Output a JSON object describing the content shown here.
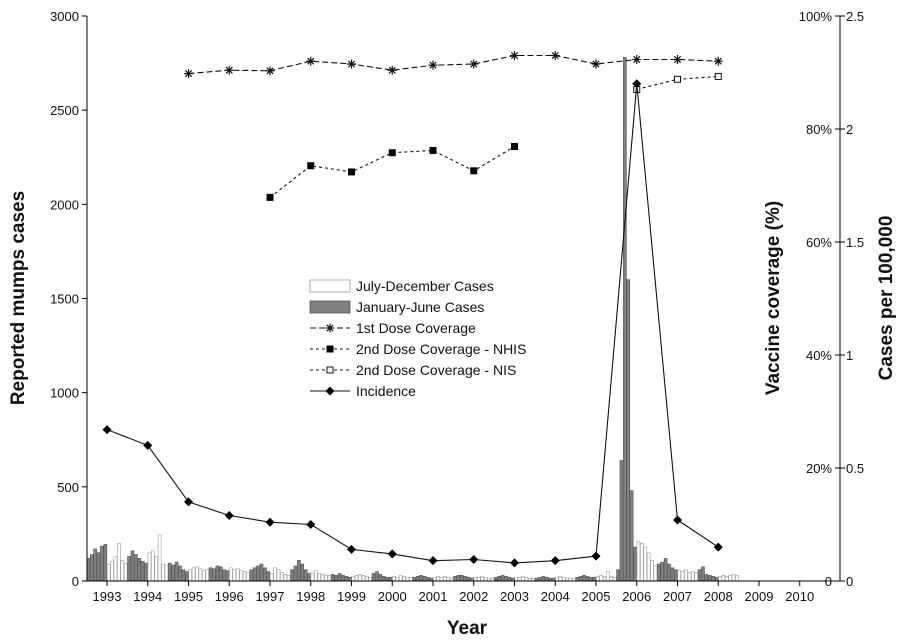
{
  "chart_data": {
    "type": "bar+line",
    "xlabel": "Year",
    "ylabel_left": "Reported mumps cases",
    "ylabel_right1": "Vaccine coverage (%)",
    "ylabel_right2": "Cases per 100,000",
    "left_axis": {
      "ylim": [
        0,
        3000
      ],
      "ticks": [
        "0",
        "500",
        "1000",
        "1500",
        "2000",
        "2500",
        "3000"
      ]
    },
    "coverage_axis": {
      "ylim": [
        0,
        100
      ],
      "ticks": [
        "0",
        "20%",
        "40%",
        "60%",
        "80%",
        "100%"
      ]
    },
    "incidence_axis": {
      "ylim": [
        0,
        2.5
      ],
      "ticks": [
        "0",
        "0.5",
        "1",
        "1.5",
        "2",
        "2.5"
      ]
    },
    "x_ticks": [
      "1993",
      "1994",
      "1995",
      "1996",
      "1997",
      "1998",
      "1999",
      "2000",
      "2001",
      "2002",
      "2003",
      "2004",
      "2005",
      "2006",
      "2007",
      "2008",
      "2009",
      "2010"
    ],
    "legend": [
      {
        "label": "July-December Cases",
        "kind": "bar-open"
      },
      {
        "label": "January-June Cases",
        "kind": "bar-filled"
      },
      {
        "label": "1st Dose Coverage",
        "kind": "line-star"
      },
      {
        "label": "2nd Dose Coverage - NHIS",
        "kind": "line-filled-square"
      },
      {
        "label": "2nd Dose Coverage - NIS",
        "kind": "line-open-square"
      },
      {
        "label": "Incidence",
        "kind": "line-diamond"
      }
    ],
    "monthly_cases": {
      "start_year": 1993,
      "values": [
        120,
        140,
        170,
        150,
        185,
        195,
        90,
        105,
        130,
        200,
        110,
        95,
        130,
        160,
        140,
        120,
        105,
        95,
        150,
        160,
        130,
        245,
        90,
        85,
        95,
        85,
        100,
        80,
        60,
        50,
        60,
        70,
        75,
        65,
        55,
        60,
        70,
        65,
        80,
        75,
        60,
        55,
        70,
        60,
        65,
        55,
        50,
        45,
        60,
        70,
        80,
        90,
        70,
        50,
        40,
        70,
        60,
        45,
        35,
        30,
        60,
        80,
        110,
        90,
        60,
        40,
        45,
        55,
        40,
        35,
        30,
        30,
        35,
        30,
        40,
        30,
        25,
        20,
        25,
        30,
        35,
        30,
        25,
        20,
        40,
        50,
        35,
        25,
        20,
        20,
        25,
        20,
        30,
        25,
        20,
        20,
        20,
        25,
        30,
        25,
        20,
        15,
        20,
        25,
        20,
        25,
        20,
        15,
        25,
        30,
        30,
        25,
        20,
        15,
        20,
        20,
        25,
        20,
        15,
        15,
        20,
        25,
        30,
        25,
        20,
        15,
        20,
        20,
        25,
        20,
        15,
        15,
        15,
        20,
        25,
        20,
        15,
        15,
        20,
        25,
        20,
        15,
        15,
        15,
        20,
        25,
        30,
        25,
        20,
        20,
        25,
        30,
        25,
        50,
        25,
        20,
        60,
        640,
        2780,
        1600,
        480,
        180,
        210,
        200,
        180,
        150,
        110,
        80,
        90,
        100,
        120,
        90,
        70,
        60,
        55,
        50,
        60,
        45,
        50,
        45,
        60,
        75,
        35,
        30,
        25,
        20,
        25,
        30,
        25,
        30,
        35,
        30
      ]
    },
    "first_dose_coverage": {
      "years": [
        1995,
        1996,
        1997,
        1998,
        1999,
        2000,
        2001,
        2002,
        2003,
        2004,
        2005,
        2006,
        2007,
        2008
      ],
      "values": [
        89.8,
        90.4,
        90.3,
        92.0,
        91.5,
        90.4,
        91.3,
        91.5,
        93.0,
        93.0,
        91.5,
        92.3,
        92.3,
        92.0
      ]
    },
    "second_dose_nhis": {
      "years": [
        1997,
        1998,
        1999,
        2000,
        2001,
        2002,
        2003
      ],
      "values": [
        67.9,
        73.5,
        72.4,
        75.8,
        76.2,
        72.6,
        76.9
      ]
    },
    "second_dose_nis": {
      "years": [
        2006,
        2007,
        2008
      ],
      "values": [
        87.0,
        88.8,
        89.3
      ]
    },
    "incidence": {
      "years": [
        1993,
        1994,
        1995,
        1996,
        1997,
        1998,
        1999,
        2000,
        2001,
        2002,
        2003,
        2004,
        2005,
        2006,
        2007,
        2008
      ],
      "values": [
        0.67,
        0.6,
        0.35,
        0.29,
        0.26,
        0.25,
        0.14,
        0.12,
        0.09,
        0.095,
        0.08,
        0.09,
        0.11,
        2.2,
        0.27,
        0.15
      ]
    }
  }
}
